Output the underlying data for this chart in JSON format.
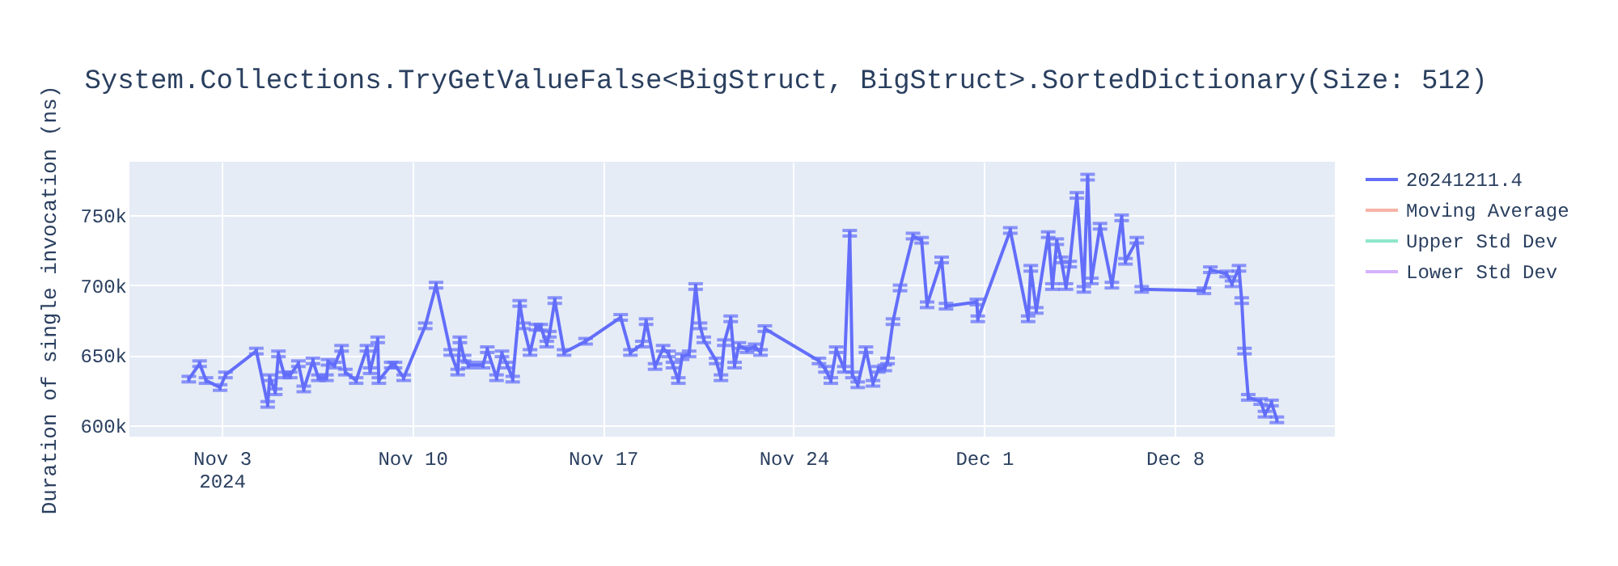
{
  "chart_data": {
    "type": "line",
    "title": "System.Collections.TryGetValueFalse<BigStruct, BigStruct>.SortedDictionary(Size: 512)",
    "ylabel": "Duration of single invocation (ns)",
    "xlim": [
      "2024-10-30T14:40",
      "2024-12-13T21:10"
    ],
    "xticks": [
      {
        "value": "2024-11-03",
        "label": "Nov 3\n2024"
      },
      {
        "value": "2024-11-10",
        "label": "Nov 10"
      },
      {
        "value": "2024-11-17",
        "label": "Nov 17"
      },
      {
        "value": "2024-11-24",
        "label": "Nov 24"
      },
      {
        "value": "2024-12-01",
        "label": "Dec 1"
      },
      {
        "value": "2024-12-08",
        "label": "Dec 8"
      }
    ],
    "ylim": [
      592000,
      788000
    ],
    "yticks": [
      {
        "value": 600000,
        "label": "600k"
      },
      {
        "value": 650000,
        "label": "650k"
      },
      {
        "value": 700000,
        "label": "700k"
      },
      {
        "value": 750000,
        "label": "750k"
      }
    ],
    "grid": true,
    "legend": "top right",
    "line_style": "solid",
    "series": [
      {
        "name": "20241211.4",
        "color": "#636efa",
        "x": [
          "2024-11-01T19:00",
          "2024-11-02T04:30",
          "2024-11-02T10:10",
          "2024-11-02T22:35",
          "2024-11-03T03:20",
          "2024-11-04T06:30",
          "2024-11-04T16:30",
          "2024-11-04T18:20",
          "2024-11-04T23:10",
          "2024-11-05T02:00",
          "2024-11-05T07:10",
          "2024-11-05T12:25",
          "2024-11-05T19:35",
          "2024-11-06T00:20",
          "2024-11-06T08:25",
          "2024-11-06T13:10",
          "2024-11-06T20:20",
          "2024-11-06T21:45",
          "2024-11-07T03:30",
          "2024-11-07T09:40",
          "2024-11-07T13:00",
          "2024-11-07T22:30",
          "2024-11-08T08:00",
          "2024-11-08T10:50",
          "2024-11-08T17:30",
          "2024-11-08T18:30",
          "2024-11-09T05:25",
          "2024-11-09T08:45",
          "2024-11-09T16:25",
          "2024-11-10T11:25",
          "2024-11-10T20:55",
          "2024-11-11T09:50",
          "2024-11-11T16:00",
          "2024-11-11T17:55",
          "2024-11-11T21:40",
          "2024-11-12T01:30",
          "2024-11-12T14:20",
          "2024-11-12T18:05",
          "2024-11-13T02:15",
          "2024-11-13T07:00",
          "2024-11-13T11:45",
          "2024-11-13T16:30",
          "2024-11-13T22:40",
          "2024-11-14T02:00",
          "2024-11-14T07:45",
          "2024-11-14T13:00",
          "2024-11-14T17:15",
          "2024-11-14T22:30",
          "2024-11-15T00:50",
          "2024-11-15T05:35",
          "2024-11-15T13:45",
          "2024-11-16T08:45",
          "2024-11-17T15:40",
          "2024-11-18T00:15",
          "2024-11-18T10:45",
          "2024-11-18T14:05",
          "2024-11-18T22:00",
          "2024-11-19T05:05",
          "2024-11-19T09:55",
          "2024-11-19T13:45",
          "2024-11-19T18:30",
          "2024-11-19T21:50",
          "2024-11-20T04:00",
          "2024-11-20T09:45",
          "2024-11-20T13:35",
          "2024-11-20T16:55",
          "2024-11-21T03:50",
          "2024-11-21T08:05",
          "2024-11-21T11:00",
          "2024-11-21T16:40",
          "2024-11-21T20:05",
          "2024-11-21T23:55",
          "2024-11-22T07:00",
          "2024-11-22T14:10",
          "2024-11-22T18:55",
          "2024-11-22T22:45",
          "2024-11-24T22:25",
          "2024-11-25T04:05",
          "2024-11-25T08:55",
          "2024-11-25T13:40",
          "2024-11-25T20:50",
          "2024-11-26T01:35",
          "2024-11-26T03:55",
          "2024-11-26T08:40",
          "2024-11-26T15:50",
          "2024-11-26T22:05",
          "2024-11-27T02:50",
          "2024-11-27T08:30",
          "2024-11-27T10:55",
          "2024-11-27T15:40",
          "2024-11-27T21:55",
          "2024-11-28T09:20",
          "2024-11-28T16:55",
          "2024-11-28T21:45",
          "2024-11-29T10:35",
          "2024-11-29T14:25",
          "2024-11-30T17:35",
          "2024-11-30T18:30",
          "2024-12-01T23:05",
          "2024-12-02T14:50",
          "2024-12-02T17:10",
          "2024-12-02T22:00",
          "2024-12-03T08:30",
          "2024-12-03T12:15",
          "2024-12-03T16:05",
          "2024-12-03T19:55",
          "2024-12-04T00:10",
          "2024-12-04T03:30",
          "2024-12-04T09:45",
          "2024-12-04T15:55",
          "2024-12-04T19:15",
          "2024-12-04T22:35",
          "2024-12-05T06:10",
          "2024-12-05T16:40",
          "2024-12-06T01:15",
          "2024-12-06T04:35",
          "2024-12-06T14:35",
          "2024-12-06T18:55",
          "2024-12-09T01:45",
          "2024-12-09T07:25",
          "2024-12-09T21:45",
          "2024-12-10T02:30",
          "2024-12-10T08:40",
          "2024-12-10T11:05",
          "2024-12-10T13:30",
          "2024-12-10T16:50",
          "2024-12-11T03:45",
          "2024-12-11T07:35",
          "2024-12-11T13:20",
          "2024-12-11T18:05"
        ],
        "values": [
          633000,
          644000,
          632000,
          627000,
          636000,
          653000,
          615000,
          634000,
          624000,
          651000,
          636000,
          636000,
          644000,
          626000,
          646000,
          634000,
          634000,
          645000,
          643000,
          655000,
          638000,
          632000,
          655000,
          639000,
          661000,
          632000,
          643000,
          643000,
          634000,
          671000,
          700000,
          652000,
          638000,
          661000,
          648000,
          643000,
          643000,
          654000,
          634000,
          651000,
          643000,
          633000,
          687000,
          671000,
          652000,
          670000,
          670000,
          658000,
          665000,
          689000,
          652000,
          660000,
          677000,
          652000,
          658000,
          674000,
          642000,
          655000,
          651000,
          643000,
          632000,
          649000,
          651000,
          699000,
          671000,
          661000,
          646000,
          634000,
          659000,
          676000,
          643000,
          657000,
          654000,
          656000,
          652000,
          669000,
          646000,
          640000,
          632000,
          654000,
          640000,
          737000,
          636000,
          629000,
          654000,
          630000,
          640000,
          641000,
          646000,
          674000,
          698000,
          735000,
          732000,
          686000,
          718000,
          685000,
          688000,
          676000,
          739000,
          676000,
          712000,
          682000,
          736000,
          699000,
          731000,
          718000,
          699000,
          715000,
          764000,
          697000,
          777000,
          703000,
          742000,
          700000,
          748000,
          717000,
          732000,
          697000,
          696000,
          711000,
          708000,
          701000,
          712000,
          689000,
          653000,
          620000,
          617000,
          608000,
          616000,
          604000
        ],
        "errors": [
          2000,
          2000,
          2000,
          2000,
          2000,
          2000,
          2000,
          2000,
          2000,
          2000,
          2000,
          2000,
          2000,
          2000,
          2000,
          2000,
          2000,
          2000,
          2000,
          2000,
          2000,
          2000,
          2000,
          2000,
          2000,
          2000,
          2000,
          2000,
          2000,
          2000,
          2000,
          2000,
          2000,
          2000,
          2000,
          2000,
          2000,
          2000,
          2000,
          2000,
          2000,
          2000,
          2000,
          2000,
          2000,
          2000,
          2000,
          2000,
          2000,
          2000,
          2000,
          2000,
          2000,
          2000,
          2000,
          2000,
          2000,
          2000,
          2000,
          2000,
          2000,
          2000,
          2000,
          2000,
          2000,
          2000,
          2000,
          2000,
          2000,
          2000,
          2000,
          2000,
          2000,
          2000,
          2000,
          2000,
          2000,
          2000,
          2000,
          2000,
          2000,
          2000,
          2000,
          2000,
          2000,
          2000,
          2000,
          2000,
          2000,
          2000,
          2000,
          2000,
          2000,
          2000,
          2000,
          2000,
          2000,
          2000,
          2000,
          2000,
          2000,
          2000,
          2000,
          2000,
          2000,
          2000,
          2000,
          2000,
          2000,
          2000,
          2000,
          2000,
          2000,
          2000,
          2000,
          2000,
          2000,
          2000,
          2000,
          2000,
          2000,
          2000,
          2000,
          2000,
          2000,
          2000,
          2000,
          2000,
          2000,
          2000
        ]
      },
      {
        "name": "Moving Average",
        "color": "#f7b3a6"
      },
      {
        "name": "Upper Std Dev",
        "color": "#8fe6cb"
      },
      {
        "name": "Lower Std Dev",
        "color": "#d5b3fb"
      }
    ]
  }
}
